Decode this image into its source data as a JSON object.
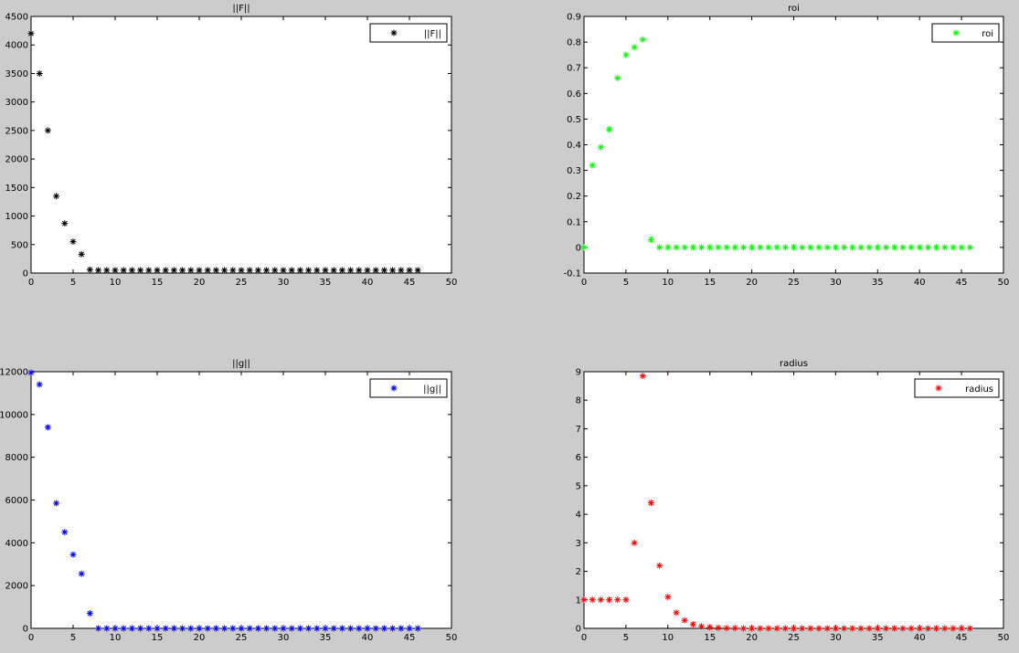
{
  "window": {
    "background": "#cccccc"
  },
  "chart_data": [
    {
      "type": "scatter",
      "title": "||F||",
      "legend": {
        "label": "||F||",
        "position": "top-right"
      },
      "marker": "*",
      "color": "#000000",
      "xlim": [
        0,
        50
      ],
      "ylim": [
        0,
        4500
      ],
      "xticks": [
        0,
        5,
        10,
        15,
        20,
        25,
        30,
        35,
        40,
        45,
        50
      ],
      "yticks": [
        0,
        500,
        1000,
        1500,
        2000,
        2500,
        3000,
        3500,
        4000,
        4500
      ],
      "x": [
        0,
        1,
        2,
        3,
        4,
        5,
        6,
        7,
        8,
        9,
        10,
        11,
        12,
        13,
        14,
        15,
        16,
        17,
        18,
        19,
        20,
        21,
        22,
        23,
        24,
        25,
        26,
        27,
        28,
        29,
        30,
        31,
        32,
        33,
        34,
        35,
        36,
        37,
        38,
        39,
        40,
        41,
        42,
        43,
        44,
        45,
        46
      ],
      "y": [
        4200,
        3500,
        2500,
        1350,
        870,
        550,
        330,
        60,
        50,
        50,
        50,
        50,
        50,
        50,
        50,
        50,
        50,
        50,
        50,
        50,
        50,
        50,
        50,
        50,
        50,
        50,
        50,
        50,
        50,
        50,
        50,
        50,
        50,
        50,
        50,
        50,
        50,
        50,
        50,
        50,
        50,
        50,
        50,
        50,
        50,
        50,
        50
      ]
    },
    {
      "type": "scatter",
      "title": "roi",
      "legend": {
        "label": "roi",
        "position": "top-right"
      },
      "marker": "*",
      "color": "#00ff00",
      "xlim": [
        0,
        50
      ],
      "ylim": [
        -0.1,
        0.9
      ],
      "xticks": [
        0,
        5,
        10,
        15,
        20,
        25,
        30,
        35,
        40,
        45,
        50
      ],
      "yticks": [
        -0.1,
        0,
        0.1,
        0.2,
        0.3,
        0.4,
        0.5,
        0.6,
        0.7,
        0.8,
        0.9
      ],
      "ytick_labels": [
        "-0.1",
        "0",
        "0.1",
        "0.2",
        "0.3",
        "0.4",
        "0.5",
        "0.6",
        "0.7",
        "0.8",
        "0.9"
      ],
      "x": [
        0,
        1,
        2,
        3,
        4,
        5,
        6,
        7,
        8,
        9,
        10,
        11,
        12,
        13,
        14,
        15,
        16,
        17,
        18,
        19,
        20,
        21,
        22,
        23,
        24,
        25,
        26,
        27,
        28,
        29,
        30,
        31,
        32,
        33,
        34,
        35,
        36,
        37,
        38,
        39,
        40,
        41,
        42,
        43,
        44,
        45,
        46
      ],
      "y": [
        0,
        0.32,
        0.39,
        0.46,
        0.66,
        0.75,
        0.78,
        0.81,
        0.03,
        0,
        0,
        0,
        0,
        0,
        0,
        0,
        0,
        0,
        0,
        0,
        0,
        0,
        0,
        0,
        0,
        0,
        0,
        0,
        0,
        0,
        0,
        0,
        0,
        0,
        0,
        0,
        0,
        0,
        0,
        0,
        0,
        0,
        0,
        0,
        0,
        0,
        0
      ]
    },
    {
      "type": "scatter",
      "title": "||g||",
      "legend": {
        "label": "||g||",
        "position": "top-right"
      },
      "marker": "*",
      "color": "#0000ff",
      "xlim": [
        0,
        50
      ],
      "ylim": [
        0,
        12000
      ],
      "xticks": [
        0,
        5,
        10,
        15,
        20,
        25,
        30,
        35,
        40,
        45,
        50
      ],
      "yticks": [
        0,
        2000,
        4000,
        6000,
        8000,
        10000,
        12000
      ],
      "x": [
        0,
        1,
        2,
        3,
        4,
        5,
        6,
        7,
        8,
        9,
        10,
        11,
        12,
        13,
        14,
        15,
        16,
        17,
        18,
        19,
        20,
        21,
        22,
        23,
        24,
        25,
        26,
        27,
        28,
        29,
        30,
        31,
        32,
        33,
        34,
        35,
        36,
        37,
        38,
        39,
        40,
        41,
        42,
        43,
        44,
        45,
        46
      ],
      "y": [
        11950,
        11400,
        9400,
        5850,
        4500,
        3450,
        2550,
        700,
        0,
        0,
        0,
        0,
        0,
        0,
        0,
        0,
        0,
        0,
        0,
        0,
        0,
        0,
        0,
        0,
        0,
        0,
        0,
        0,
        0,
        0,
        0,
        0,
        0,
        0,
        0,
        0,
        0,
        0,
        0,
        0,
        0,
        0,
        0,
        0,
        0,
        0,
        0
      ]
    },
    {
      "type": "scatter",
      "title": "radius",
      "legend": {
        "label": "radius",
        "position": "top-right"
      },
      "marker": "*",
      "color": "#ff0000",
      "xlim": [
        0,
        50
      ],
      "ylim": [
        0,
        9
      ],
      "xticks": [
        0,
        5,
        10,
        15,
        20,
        25,
        30,
        35,
        40,
        45,
        50
      ],
      "yticks": [
        0,
        1,
        2,
        3,
        4,
        5,
        6,
        7,
        8,
        9
      ],
      "x": [
        0,
        1,
        2,
        3,
        4,
        5,
        6,
        7,
        8,
        9,
        10,
        11,
        12,
        13,
        14,
        15,
        16,
        17,
        18,
        19,
        20,
        21,
        22,
        23,
        24,
        25,
        26,
        27,
        28,
        29,
        30,
        31,
        32,
        33,
        34,
        35,
        36,
        37,
        38,
        39,
        40,
        41,
        42,
        43,
        44,
        45,
        46
      ],
      "y": [
        1,
        1,
        1,
        1,
        1,
        1,
        3,
        8.85,
        4.4,
        2.2,
        1.1,
        0.55,
        0.28,
        0.14,
        0.07,
        0.035,
        0.02,
        0.01,
        0.01,
        0,
        0,
        0,
        0,
        0,
        0,
        0,
        0,
        0,
        0,
        0,
        0,
        0,
        0,
        0,
        0,
        0,
        0,
        0,
        0,
        0,
        0,
        0,
        0,
        0,
        0,
        0,
        0
      ]
    }
  ]
}
